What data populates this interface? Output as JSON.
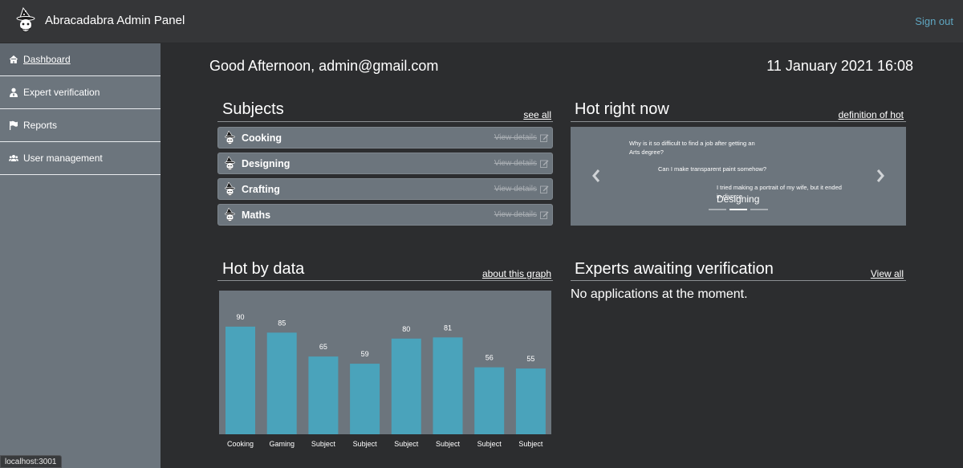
{
  "header": {
    "title": "Abracadabra Admin Panel",
    "signout": "Sign out",
    "logo_icon": "wizard-icon"
  },
  "sidebar": {
    "items": [
      {
        "label": "Dashboard",
        "icon": "home-icon",
        "active": true
      },
      {
        "label": "Expert verification",
        "icon": "user-tie-icon",
        "active": false
      },
      {
        "label": "Reports",
        "icon": "flag-icon",
        "active": false
      },
      {
        "label": "User management",
        "icon": "users-icon",
        "active": false
      }
    ],
    "status_url": "localhost:3001"
  },
  "main": {
    "greeting": "Good Afternoon, admin@gmail.com",
    "datetime": "11 January 2021 16:08"
  },
  "subjects": {
    "title": "Subjects",
    "link": "see all",
    "items": [
      {
        "name": "Cooking",
        "action": "View details"
      },
      {
        "name": "Designing",
        "action": "View details"
      },
      {
        "name": "Crafting",
        "action": "View details"
      },
      {
        "name": "Maths",
        "action": "View details"
      }
    ]
  },
  "hot": {
    "title": "Hot right now",
    "link": "definition of hot",
    "questions": [
      "Why is it so difficult to find a job after getting an Arts degree?",
      "Can I make transparent paint somehow?",
      "I tried making a portrait of my wife, but it ended in divorce"
    ],
    "caption": "Designing",
    "indicator_count": 3,
    "active_indicator": 1
  },
  "hotdata": {
    "title": "Hot by data",
    "link": "about this graph"
  },
  "experts": {
    "title": "Experts awaiting verification",
    "link": "View all",
    "empty_text": "No applications at the moment."
  },
  "chart_data": {
    "type": "bar",
    "categories": [
      "Cooking",
      "Gaming",
      "Subject",
      "Subject",
      "Subject",
      "Subject",
      "Subject",
      "Subject"
    ],
    "values": [
      90,
      85,
      65,
      59,
      80,
      81,
      56,
      55
    ],
    "ylim": [
      0,
      100
    ],
    "bar_color": "#4aa3bb",
    "grid": false
  },
  "colors": {
    "accent": "#5fa6c1",
    "sidebar": "#6c757d",
    "bar": "#4aa3bb"
  }
}
